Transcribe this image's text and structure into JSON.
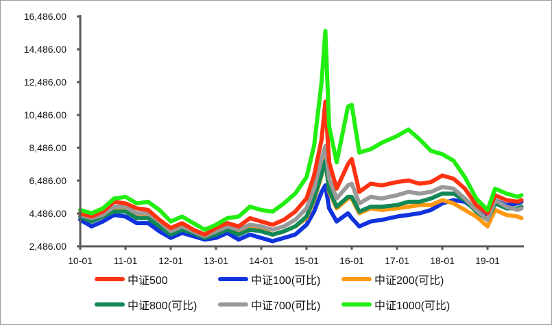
{
  "chart_data": {
    "type": "line",
    "title": "",
    "xlabel": "",
    "ylabel": "",
    "ylim": [
      2486,
      16486
    ],
    "yticks": [
      "2,486.00",
      "4,486.00",
      "6,486.00",
      "8,486.00",
      "10,486.00",
      "12,486.00",
      "14,486.00",
      "16,486.00"
    ],
    "ytick_values": [
      2486,
      4486,
      6486,
      8486,
      10486,
      12486,
      14486,
      16486
    ],
    "xticks": [
      "10-01",
      "11-01",
      "12-01",
      "13-01",
      "14-01",
      "15-01",
      "16-01",
      "17-01",
      "18-01",
      "19-01"
    ],
    "grid": false,
    "legend_position": "bottom",
    "x": [
      "10-01",
      "10-04",
      "10-07",
      "10-10",
      "11-01",
      "11-04",
      "11-07",
      "11-10",
      "12-01",
      "12-04",
      "12-07",
      "12-10",
      "13-01",
      "13-04",
      "13-07",
      "13-10",
      "14-01",
      "14-04",
      "14-07",
      "14-10",
      "15-01",
      "15-03",
      "15-05",
      "15-06",
      "15-07",
      "15-09",
      "15-12",
      "16-01",
      "16-03",
      "16-06",
      "16-09",
      "17-01",
      "17-04",
      "17-07",
      "17-10",
      "18-01",
      "18-04",
      "18-07",
      "18-10",
      "19-01",
      "19-03",
      "19-06",
      "19-09",
      "19-10"
    ],
    "series": [
      {
        "name": "中证500",
        "color": "#ff3311",
        "values": [
          4500,
          4300,
          4600,
          5200,
          5100,
          4800,
          4700,
          4100,
          3600,
          3900,
          3500,
          3200,
          3600,
          3900,
          3700,
          4200,
          4000,
          3800,
          4100,
          4600,
          5400,
          6800,
          9000,
          11300,
          7600,
          6000,
          7500,
          7800,
          5800,
          6300,
          6200,
          6400,
          6500,
          6300,
          6400,
          6800,
          6600,
          6000,
          5000,
          4500,
          5600,
          5300,
          5200,
          5300
        ]
      },
      {
        "name": "中证100(可比)",
        "color": "#1133dd",
        "values": [
          4100,
          3700,
          4000,
          4400,
          4300,
          3900,
          3900,
          3400,
          3000,
          3300,
          3100,
          2900,
          3000,
          3300,
          2900,
          3200,
          3000,
          2800,
          3000,
          3200,
          3800,
          4600,
          5800,
          6200,
          4800,
          4000,
          4500,
          4200,
          3700,
          4000,
          4100,
          4300,
          4400,
          4500,
          4700,
          5100,
          5300,
          5200,
          4700,
          4300,
          5300,
          5000,
          5100,
          5200
        ]
      },
      {
        "name": "中证200(可比)",
        "color": "#ff9911",
        "values": [
          4300,
          4000,
          4300,
          4700,
          4700,
          4300,
          4300,
          3800,
          3300,
          3600,
          3300,
          3000,
          3300,
          3600,
          3300,
          3600,
          3500,
          3200,
          3400,
          3700,
          4200,
          5300,
          6800,
          7800,
          5800,
          4800,
          5400,
          5400,
          4500,
          4800,
          4700,
          4800,
          4900,
          5000,
          5000,
          5300,
          5100,
          4700,
          4300,
          3700,
          4700,
          4400,
          4300,
          4200
        ]
      },
      {
        "name": "中证800(可比)",
        "color": "#118855",
        "values": [
          4300,
          4000,
          4300,
          4600,
          4600,
          4200,
          4200,
          3700,
          3200,
          3500,
          3300,
          3000,
          3200,
          3500,
          3200,
          3500,
          3400,
          3200,
          3400,
          3700,
          4300,
          5400,
          6900,
          7700,
          5900,
          4900,
          5500,
          5500,
          4600,
          4900,
          4900,
          5000,
          5200,
          5200,
          5400,
          5700,
          5700,
          5300,
          4600,
          4100,
          5100,
          4800,
          4800,
          4900
        ]
      },
      {
        "name": "中证700(可比)",
        "color": "#999999",
        "values": [
          4400,
          4200,
          4400,
          4900,
          4900,
          4500,
          4500,
          4000,
          3400,
          3700,
          3400,
          3100,
          3400,
          3700,
          3500,
          3800,
          3700,
          3500,
          3700,
          4100,
          4800,
          6000,
          7800,
          8600,
          6600,
          5400,
          6200,
          6300,
          5100,
          5500,
          5400,
          5600,
          5800,
          5700,
          5800,
          6100,
          6000,
          5400,
          4700,
          4100,
          5300,
          4900,
          4700,
          4800
        ]
      },
      {
        "name": "中证1000(可比)",
        "color": "#22ee11",
        "values": [
          4700,
          4500,
          4800,
          5400,
          5500,
          5100,
          5200,
          4700,
          4000,
          4300,
          3900,
          3500,
          3800,
          4200,
          4300,
          4900,
          4700,
          4600,
          5100,
          5700,
          6700,
          8600,
          12500,
          15600,
          9800,
          7600,
          11000,
          11100,
          8200,
          8400,
          8800,
          9200,
          9600,
          9000,
          8300,
          8100,
          7700,
          6700,
          5400,
          4700,
          6000,
          5700,
          5500,
          5600
        ]
      }
    ]
  },
  "legend": {
    "items": [
      {
        "label": "中证500",
        "color": "#ff3311"
      },
      {
        "label": "中证100(可比)",
        "color": "#1133dd"
      },
      {
        "label": "中证200(可比)",
        "color": "#ff9911"
      },
      {
        "label": "中证800(可比)",
        "color": "#118855"
      },
      {
        "label": "中证700(可比)",
        "color": "#999999"
      },
      {
        "label": "中证1000(可比)",
        "color": "#22ee11"
      }
    ]
  }
}
